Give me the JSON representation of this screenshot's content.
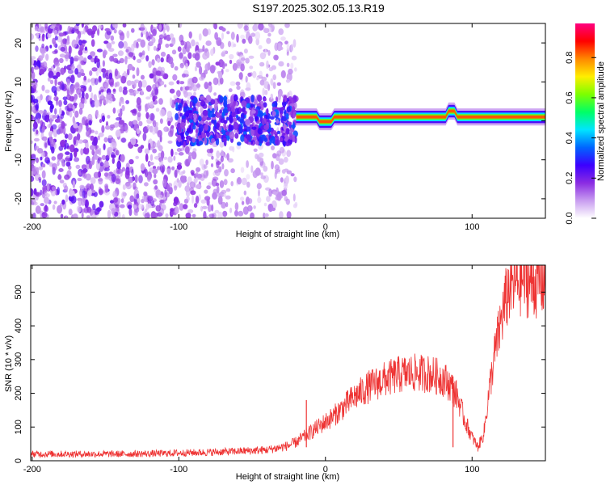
{
  "chart_data": [
    {
      "type": "heatmap",
      "title": "S197.2025.302.05.13.R19",
      "xlabel": "Height of straight line (km)",
      "ylabel": "Frequency (Hz)",
      "xlim": [
        -201,
        150
      ],
      "ylim": [
        -25,
        25
      ],
      "x_ticks": [
        -200,
        -100,
        0,
        100
      ],
      "y_ticks": [
        20,
        10,
        0,
        -10,
        -20
      ],
      "grid": false,
      "colorbar": {
        "label": "Normalized spectral amplitude",
        "range": [
          0,
          0.97
        ],
        "ticks": [
          0.0,
          0.2,
          0.4,
          0.6,
          0.8
        ],
        "colormap": [
          "#ffffff",
          "#c89cf0",
          "#8a2be2",
          "#3b00ff",
          "#0066ff",
          "#00e5ff",
          "#00ff66",
          "#7cff00",
          "#ffee00",
          "#ff8800",
          "#ff0000",
          "#ff0080"
        ]
      },
      "features": {
        "noise_region_x": [
          -201,
          -20
        ],
        "tone_frequency_hz": 1,
        "tone_start_x": -20
      }
    },
    {
      "type": "line",
      "title": "",
      "xlabel": "Height of straight line (km)",
      "ylabel": "SNR (10 * v/v)",
      "xlim": [
        -201,
        150
      ],
      "ylim": [
        0,
        580
      ],
      "x_ticks": [
        -200,
        -100,
        0,
        100
      ],
      "y_ticks": [
        0,
        100,
        200,
        300,
        400,
        500
      ],
      "grid": false,
      "color": "#ee3333",
      "series": [
        {
          "x": [
            -201,
            -180,
            -160,
            -140,
            -120,
            -100,
            -80,
            -60,
            -40,
            -30,
            -25,
            -20,
            -15,
            -10,
            -5,
            0,
            5,
            10,
            20,
            30,
            40,
            50,
            60,
            70,
            80,
            85,
            90,
            95,
            100,
            104,
            108,
            112,
            116,
            120,
            125,
            130,
            135,
            140,
            150
          ],
          "y": [
            20,
            20,
            20,
            20,
            21,
            23,
            25,
            28,
            32,
            40,
            45,
            55,
            70,
            85,
            100,
            115,
            130,
            150,
            190,
            220,
            240,
            255,
            260,
            258,
            245,
            225,
            190,
            120,
            70,
            40,
            80,
            220,
            330,
            420,
            510,
            530,
            540,
            530,
            535
          ]
        }
      ],
      "annotations": [
        {
          "x": -13,
          "y": 180
        },
        {
          "x": 87,
          "y": 250
        }
      ]
    }
  ]
}
